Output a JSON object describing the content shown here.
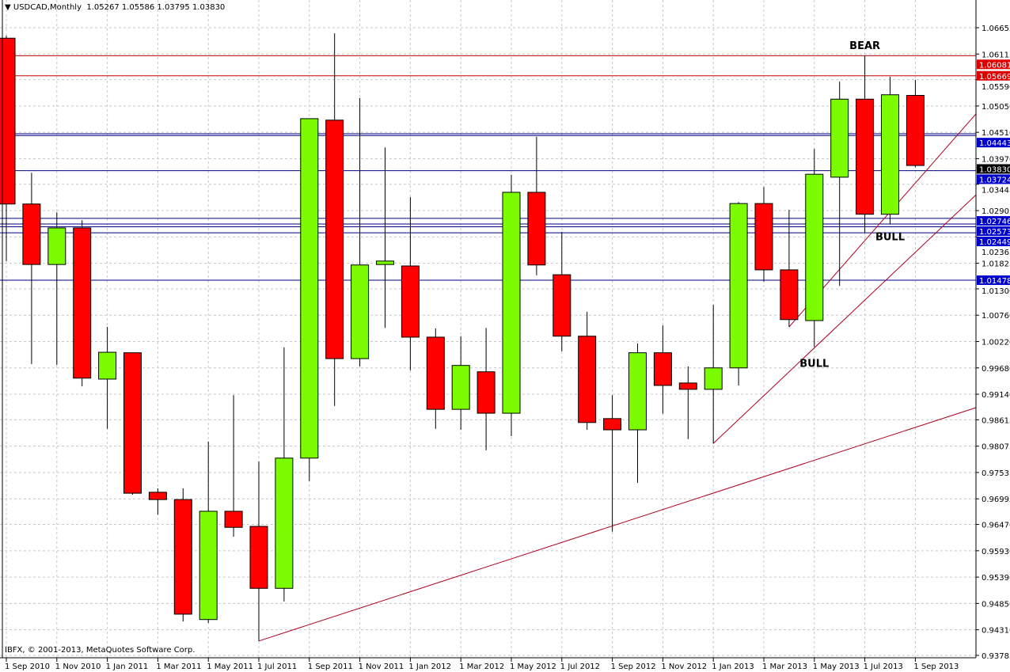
{
  "header": {
    "symbol_label": "USDCAD,Monthly",
    "ohlc_label": "1.05267 1.05586 1.03795 1.03830",
    "menu_icon": "triangle-down-icon"
  },
  "footer": {
    "copyright": "IBFX, © 2001-2013, MetaQuotes Software Corp."
  },
  "colors": {
    "bull": "#7CFC00",
    "bear": "#FF0000",
    "outline": "#000000",
    "resistance_line": "#C00000",
    "support_line": "#000080",
    "trendline": "#B00020",
    "label_red": "#E00000",
    "label_blue": "#0000CC",
    "current_price_bg": "#000000",
    "grid": "#C8C8C8"
  },
  "chart_data": {
    "type": "candlestick",
    "title": "USDCAD,Monthly",
    "ylim": [
      0.93785,
      1.06655
    ],
    "grid": true,
    "y_ticks": [
      "1.06655",
      "1.06115",
      "1.05590",
      "1.05050",
      "1.04510",
      "1.03970",
      "1.03445",
      "1.02905",
      "1.02365",
      "1.01825",
      "1.01300",
      "1.00760",
      "1.00220",
      "0.99680",
      "0.99140",
      "0.98615",
      "0.98075",
      "0.97535",
      "0.96995",
      "0.96470",
      "0.95930",
      "0.95390",
      "0.94850",
      "0.94310",
      "0.93785"
    ],
    "x_ticks": [
      "1 Sep 2010",
      "1 Nov 2010",
      "1 Jan 2011",
      "1 Mar 2011",
      "1 May 2011",
      "1 Jul 2011",
      "1 Sep 2011",
      "1 Nov 2011",
      "1 Jan 2012",
      "1 Mar 2012",
      "1 May 2012",
      "1 Jul 2012",
      "1 Sep 2012",
      "1 Nov 2012",
      "1 Jan 2013",
      "1 Mar 2013",
      "1 May 2013",
      "1 Jul 2013",
      "1 Sep 2013"
    ],
    "candles": [
      {
        "date": "2010-09",
        "o": 1.0644,
        "h": 1.0649,
        "l": 1.0187,
        "c": 1.0304
      },
      {
        "date": "2010-10",
        "o": 1.0304,
        "h": 1.0368,
        "l": 0.9976,
        "c": 1.018
      },
      {
        "date": "2010-11",
        "o": 1.018,
        "h": 1.0287,
        "l": 0.9974,
        "c": 1.0255
      },
      {
        "date": "2010-12",
        "o": 1.0255,
        "h": 1.0271,
        "l": 0.993,
        "c": 0.9947
      },
      {
        "date": "2011-01",
        "o": 0.9945,
        "h": 1.0052,
        "l": 0.9843,
        "c": 1.0
      },
      {
        "date": "2011-02",
        "o": 0.9999,
        "h": 0.9999,
        "l": 0.9708,
        "c": 0.9711
      },
      {
        "date": "2011-03",
        "o": 0.9713,
        "h": 0.9721,
        "l": 0.9667,
        "c": 0.9698
      },
      {
        "date": "2011-04",
        "o": 0.9698,
        "h": 0.9721,
        "l": 0.9448,
        "c": 0.9463
      },
      {
        "date": "2011-05",
        "o": 0.9452,
        "h": 0.9817,
        "l": 0.9445,
        "c": 0.9674
      },
      {
        "date": "2011-06",
        "o": 0.9674,
        "h": 0.9912,
        "l": 0.9622,
        "c": 0.9641
      },
      {
        "date": "2011-07",
        "o": 0.9643,
        "h": 0.9776,
        "l": 0.9408,
        "c": 0.9516
      },
      {
        "date": "2011-08",
        "o": 0.9516,
        "h": 1.001,
        "l": 0.9489,
        "c": 0.9783
      },
      {
        "date": "2011-09",
        "o": 0.9783,
        "h": 1.0479,
        "l": 0.9736,
        "c": 1.0479
      },
      {
        "date": "2011-10",
        "o": 1.0476,
        "h": 1.0654,
        "l": 0.989,
        "c": 0.9987
      },
      {
        "date": "2011-11",
        "o": 0.9987,
        "h": 1.0521,
        "l": 0.9971,
        "c": 1.0179
      },
      {
        "date": "2011-12",
        "o": 1.018,
        "h": 1.042,
        "l": 1.005,
        "c": 1.0187
      },
      {
        "date": "2012-01",
        "o": 1.0177,
        "h": 1.0318,
        "l": 0.9963,
        "c": 1.0031
      },
      {
        "date": "2012-02",
        "o": 1.0031,
        "h": 1.0049,
        "l": 0.9843,
        "c": 0.9883
      },
      {
        "date": "2012-03",
        "o": 0.9883,
        "h": 1.0033,
        "l": 0.9841,
        "c": 0.9973
      },
      {
        "date": "2012-04",
        "o": 0.996,
        "h": 1.005,
        "l": 0.9799,
        "c": 0.9875
      },
      {
        "date": "2012-05",
        "o": 0.9875,
        "h": 1.0364,
        "l": 0.9828,
        "c": 1.0328
      },
      {
        "date": "2012-06",
        "o": 1.0328,
        "h": 1.0442,
        "l": 1.0158,
        "c": 1.0179
      },
      {
        "date": "2012-07",
        "o": 1.0159,
        "h": 1.0247,
        "l": 1.0002,
        "c": 1.0033
      },
      {
        "date": "2012-08",
        "o": 1.0033,
        "h": 1.0083,
        "l": 0.9841,
        "c": 0.9856
      },
      {
        "date": "2012-09",
        "o": 0.9864,
        "h": 0.9912,
        "l": 0.9632,
        "c": 0.9841
      },
      {
        "date": "2012-10",
        "o": 0.9841,
        "h": 1.0018,
        "l": 0.9732,
        "c": 0.9999
      },
      {
        "date": "2012-11",
        "o": 0.9999,
        "h": 1.0055,
        "l": 0.9874,
        "c": 0.9932
      },
      {
        "date": "2012-12",
        "o": 0.9937,
        "h": 0.9971,
        "l": 0.9822,
        "c": 0.9924
      },
      {
        "date": "2013-01",
        "o": 0.9924,
        "h": 1.0097,
        "l": 0.9813,
        "c": 0.9968
      },
      {
        "date": "2013-02",
        "o": 0.9968,
        "h": 1.0308,
        "l": 0.9932,
        "c": 1.0305
      },
      {
        "date": "2013-03",
        "o": 1.0305,
        "h": 1.0339,
        "l": 1.0145,
        "c": 1.0169
      },
      {
        "date": "2013-04",
        "o": 1.0169,
        "h": 1.0292,
        "l": 1.0052,
        "c": 1.0067
      },
      {
        "date": "2013-05",
        "o": 1.0065,
        "h": 1.0417,
        "l": 1.0011,
        "c": 1.0365
      },
      {
        "date": "2013-06",
        "o": 1.0359,
        "h": 1.0555,
        "l": 1.0136,
        "c": 1.0519
      },
      {
        "date": "2013-07",
        "o": 1.0519,
        "h": 1.0609,
        "l": 1.0245,
        "c": 1.0283
      },
      {
        "date": "2013-08",
        "o": 1.0283,
        "h": 1.0565,
        "l": 1.0263,
        "c": 1.0528
      },
      {
        "date": "2013-09",
        "o": 1.05267,
        "h": 1.05586,
        "l": 1.03795,
        "c": 1.0383
      }
    ],
    "horizontal_lines": [
      {
        "price": 1.06081,
        "label": "1.06081",
        "kind": "resistance"
      },
      {
        "price": 1.05669,
        "label": "1.05669",
        "kind": "resistance"
      },
      {
        "price": 1.0448,
        "label": "",
        "kind": "support"
      },
      {
        "price": 1.04443,
        "label": "1.04443",
        "kind": "support"
      },
      {
        "price": 1.03724,
        "label": "1.03724",
        "kind": "support"
      },
      {
        "price": 1.02746,
        "label": "1.02746",
        "kind": "support"
      },
      {
        "price": 1.0263,
        "label": "",
        "kind": "support"
      },
      {
        "price": 1.02573,
        "label": "1.02573",
        "kind": "support"
      },
      {
        "price": 1.02449,
        "label": "1.02449",
        "kind": "support"
      },
      {
        "price": 1.01478,
        "label": "1.01478",
        "kind": "support"
      }
    ],
    "current_price": {
      "price": 1.0383,
      "label": "1.03830"
    },
    "trendlines": [
      {
        "from": {
          "date": "2011-07",
          "price": 0.9408
        },
        "through": {
          "date": "2013-09",
          "price": 0.9846
        }
      },
      {
        "from": {
          "date": "2013-01",
          "price": 0.9813
        },
        "through": {
          "date": "2013-09",
          "price": 1.0205
        }
      },
      {
        "from": {
          "date": "2013-04",
          "price": 1.0052
        },
        "through": {
          "date": "2013-09",
          "price": 1.0347
        }
      }
    ],
    "annotations": [
      {
        "text": "BEAR",
        "date": "2013-07",
        "price": 1.0622
      },
      {
        "text": "BULL",
        "date": "2013-08",
        "price": 1.023
      },
      {
        "text": "BULL",
        "date": "2013-05",
        "price": 0.997
      }
    ]
  }
}
